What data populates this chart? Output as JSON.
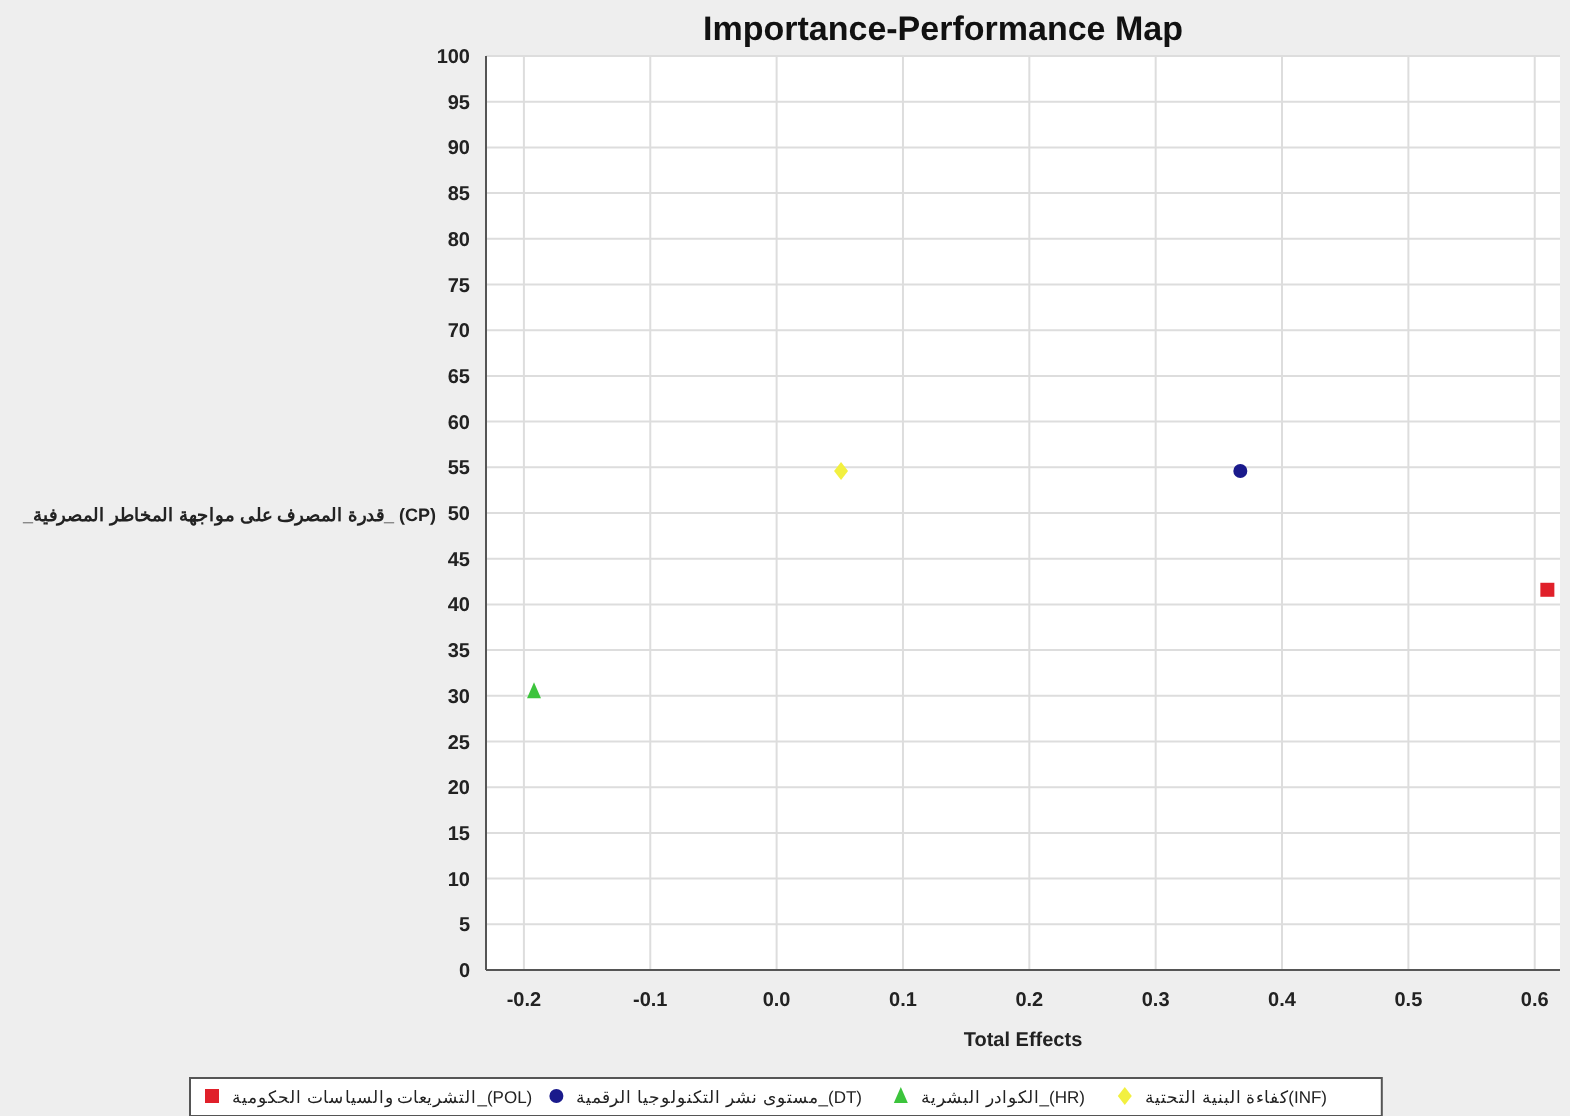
{
  "chart_data": {
    "type": "scatter",
    "title": "Importance-Performance Map",
    "xlabel": "Total Effects",
    "ylabel": "_قدرة المصرف على مواجهة المخاطر المصرفية_ (CP)",
    "xlim": [
      -0.23,
      0.62
    ],
    "xticks": [
      -0.2,
      -0.1,
      {
        "value": 0,
        "label": "0.0"
      },
      0.1,
      0.2,
      0.3,
      0.4,
      0.5,
      0.6
    ],
    "ylim": [
      0,
      100
    ],
    "yticks": [
      0,
      5,
      10,
      15,
      20,
      25,
      30,
      35,
      40,
      45,
      50,
      55,
      60,
      65,
      70,
      75,
      80,
      85,
      90,
      95,
      100
    ],
    "grid": true,
    "legend": "bottom",
    "series": [
      {
        "name": "التشريعات والسياسات الحكومية_(POL)",
        "color": "#e0202a",
        "marker": "square",
        "x": [
          0.61
        ],
        "values": [
          41.6
        ]
      },
      {
        "name": "مستوى نشر التكنولوجيا الرقمية_(DT)",
        "color": "#1a1a8c",
        "marker": "circle",
        "x": [
          0.367
        ],
        "values": [
          54.6
        ]
      },
      {
        "name": "الكوادر البشرية_(HR)",
        "color": "#3cc43c",
        "marker": "triangle",
        "x": [
          -0.192
        ],
        "values": [
          30.5
        ]
      },
      {
        "name": "كفاءة البنية التحتية(INF)",
        "color": "#f2f040",
        "marker": "diamond",
        "x": [
          0.051
        ],
        "values": [
          54.6
        ]
      }
    ]
  }
}
